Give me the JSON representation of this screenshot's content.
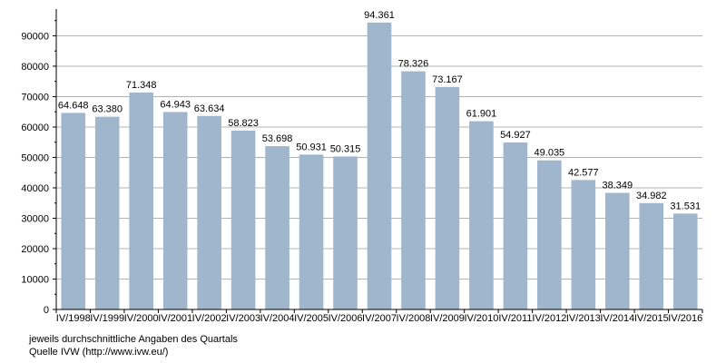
{
  "chart_data": {
    "type": "bar",
    "categories": [
      "IV/1998",
      "IV/1999",
      "IV/2000",
      "IV/2001",
      "IV/2002",
      "IV/2003",
      "IV/2004",
      "IV/2005",
      "IV/2006",
      "IV/2007",
      "IV/2008",
      "IV/2009",
      "IV/2010",
      "IV/2011",
      "IV/2012",
      "IV/2013",
      "IV/2014",
      "IV/2015",
      "IV/2016"
    ],
    "values": [
      64648,
      63380,
      71348,
      64943,
      63634,
      58823,
      53698,
      50931,
      50315,
      94361,
      78326,
      73167,
      61901,
      54927,
      49035,
      42577,
      38349,
      34982,
      31531
    ],
    "data_labels": [
      "64.648",
      "63.380",
      "71.348",
      "64.943",
      "63.634",
      "58.823",
      "53.698",
      "50.931",
      "50.315",
      "94.361",
      "78.326",
      "73.167",
      "61.901",
      "54.927",
      "49.035",
      "42.577",
      "38.349",
      "34.982",
      "31.531"
    ],
    "y_ticks": [
      0,
      10000,
      20000,
      30000,
      40000,
      50000,
      60000,
      70000,
      80000,
      90000
    ],
    "ylim": [
      0,
      97000
    ],
    "grid": true,
    "legend": "none",
    "bar_color": "#9fb6cd",
    "grid_color": "#b3b3b3"
  },
  "notes": {
    "line1": "jeweils durchschnittliche Angaben des Quartals",
    "line2": "Quelle IVW (http://www.ivw.eu/)"
  }
}
